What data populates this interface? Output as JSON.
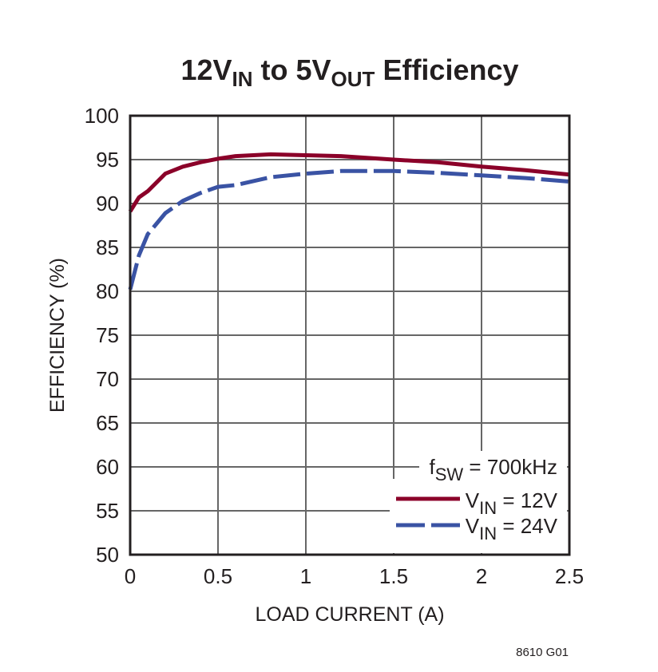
{
  "chart_data": {
    "type": "line",
    "title": {
      "main1": "12V",
      "sub1": "IN",
      "main2": " to 5V",
      "sub2": "OUT",
      "main3": " Efficiency"
    },
    "xlabel": "LOAD CURRENT (A)",
    "ylabel": "EFFICIENCY (%)",
    "xlim": [
      0,
      2.5
    ],
    "ylim": [
      50,
      100
    ],
    "xticks": [
      "0",
      "0.5",
      "1",
      "1.5",
      "2",
      "2.5"
    ],
    "yticks": [
      "50",
      "55",
      "60",
      "65",
      "70",
      "75",
      "80",
      "85",
      "90",
      "95",
      "100"
    ],
    "grid": true,
    "legend_placement": "bottom-right",
    "annotation": {
      "main": "f",
      "sub": "SW",
      "rest": " = 700kHz"
    },
    "series": [
      {
        "name": "VIN = 12V",
        "label_main": "V",
        "label_sub": "IN",
        "label_rest": " = 12V",
        "color": "#8b0029",
        "dash": "solid",
        "x": [
          0,
          0.05,
          0.1,
          0.2,
          0.3,
          0.4,
          0.5,
          0.6,
          0.7,
          0.8,
          1.0,
          1.2,
          1.5,
          1.75,
          2.0,
          2.25,
          2.5
        ],
        "y": [
          89.1,
          90.7,
          91.4,
          93.4,
          94.2,
          94.7,
          95.1,
          95.4,
          95.5,
          95.6,
          95.5,
          95.4,
          95.0,
          94.7,
          94.2,
          93.8,
          93.3
        ]
      },
      {
        "name": "VIN = 24V",
        "label_main": "V",
        "label_sub": "IN",
        "label_rest": " = 24V",
        "color": "#3a53a4",
        "dash": "dashed",
        "x": [
          0,
          0.05,
          0.1,
          0.2,
          0.3,
          0.4,
          0.5,
          0.6,
          0.8,
          1.0,
          1.2,
          1.5,
          1.75,
          2.0,
          2.25,
          2.5
        ],
        "y": [
          80.2,
          84.1,
          86.5,
          88.9,
          90.3,
          91.2,
          91.9,
          92.1,
          93.0,
          93.4,
          93.7,
          93.7,
          93.5,
          93.2,
          92.9,
          92.5
        ]
      }
    ]
  },
  "footnote": "8610 G01"
}
